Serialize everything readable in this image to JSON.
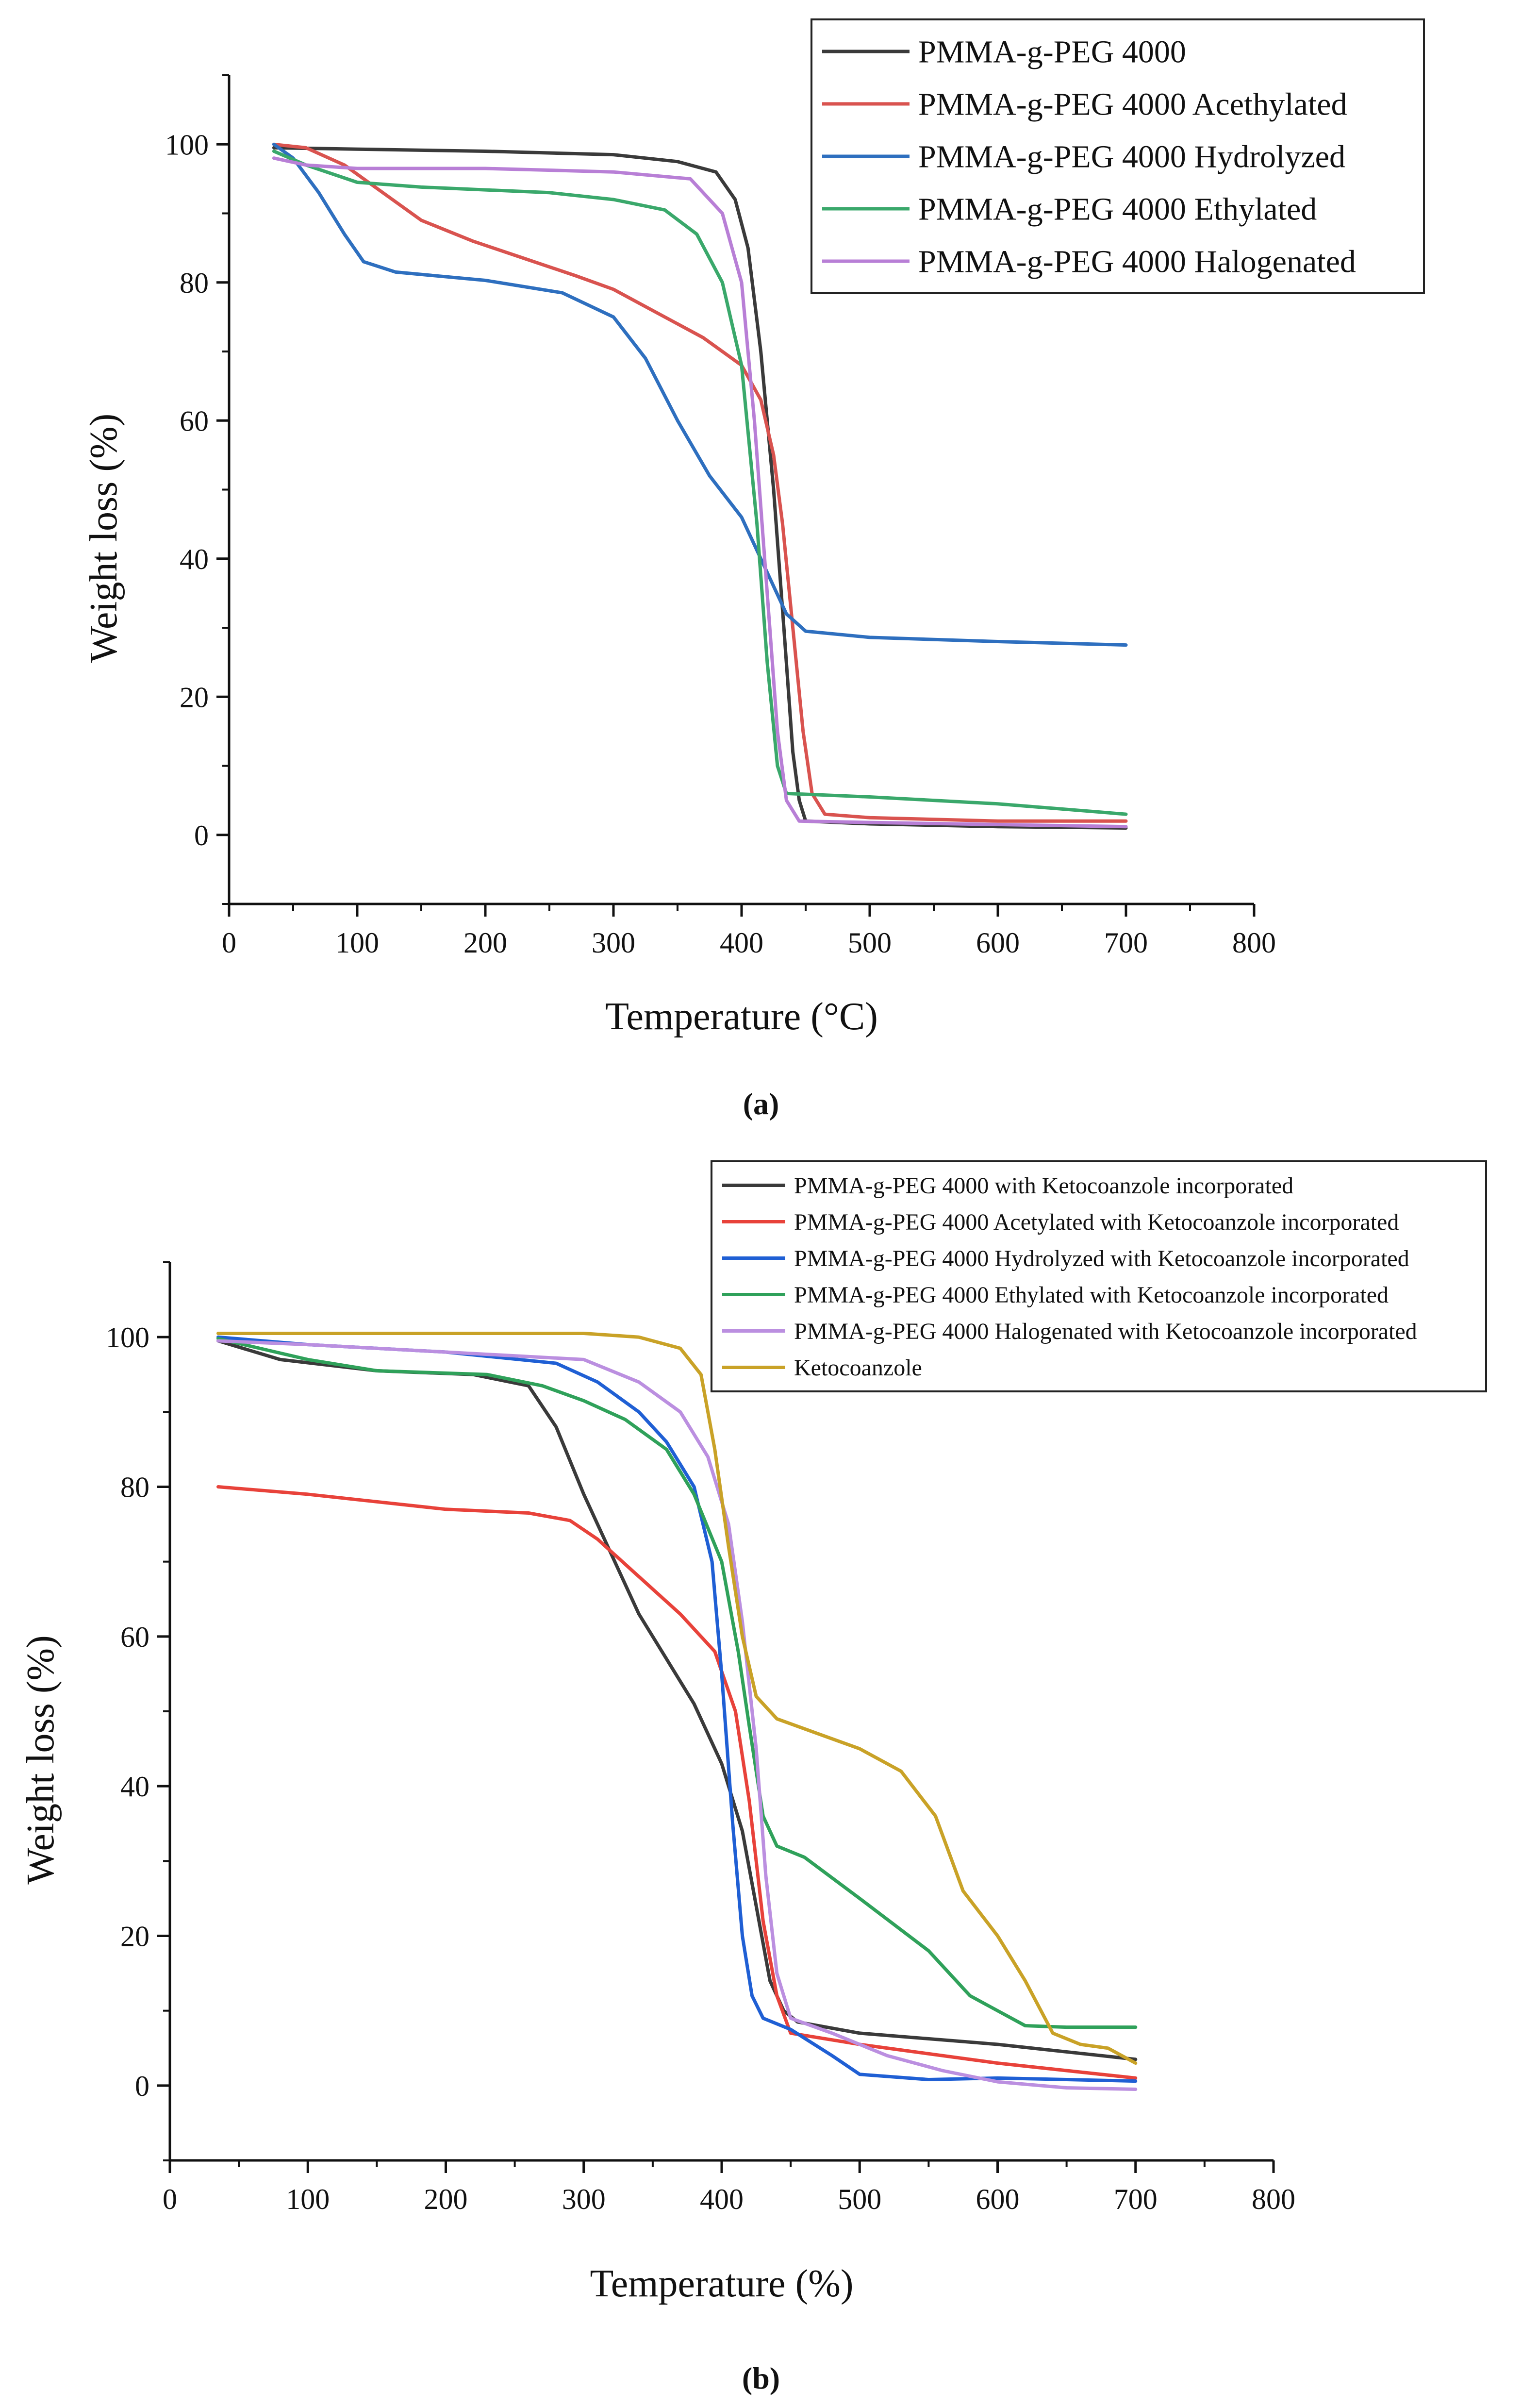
{
  "figure": {
    "caption_a": "(a)",
    "caption_b": "(b)"
  },
  "chart_data": [
    {
      "type": "line",
      "panel": "a",
      "title": "",
      "xlabel": "Temperature (°C)",
      "ylabel": "Weight loss (%)",
      "xlim": [
        0,
        800
      ],
      "ylim": [
        -10,
        110
      ],
      "xticks": [
        0,
        100,
        200,
        300,
        400,
        500,
        600,
        700,
        800
      ],
      "yticks": [
        0,
        20,
        40,
        60,
        80,
        100
      ],
      "legend_position": "top-right",
      "series": [
        {
          "name": "PMMA-g-PEG 4000",
          "color": "#3a3a3a",
          "points": [
            [
              35,
              99.5
            ],
            [
              100,
              99.3
            ],
            [
              200,
              99
            ],
            [
              300,
              98.5
            ],
            [
              350,
              97.5
            ],
            [
              380,
              96
            ],
            [
              395,
              92
            ],
            [
              405,
              85
            ],
            [
              415,
              70
            ],
            [
              425,
              50
            ],
            [
              433,
              30
            ],
            [
              440,
              12
            ],
            [
              445,
              5
            ],
            [
              450,
              2
            ],
            [
              500,
              1.6
            ],
            [
              600,
              1.2
            ],
            [
              700,
              1
            ]
          ]
        },
        {
          "name": "PMMA-g-PEG 4000 Acethylated",
          "color": "#d9534f",
          "points": [
            [
              35,
              100
            ],
            [
              60,
              99.5
            ],
            [
              90,
              97
            ],
            [
              120,
              93
            ],
            [
              150,
              89
            ],
            [
              190,
              86
            ],
            [
              230,
              83.5
            ],
            [
              270,
              81
            ],
            [
              300,
              79
            ],
            [
              330,
              76
            ],
            [
              370,
              72
            ],
            [
              400,
              68
            ],
            [
              415,
              63
            ],
            [
              425,
              55
            ],
            [
              432,
              45
            ],
            [
              440,
              30
            ],
            [
              448,
              15
            ],
            [
              455,
              6
            ],
            [
              465,
              3
            ],
            [
              500,
              2.5
            ],
            [
              600,
              2
            ],
            [
              700,
              2
            ]
          ]
        },
        {
          "name": "PMMA-g-PEG 4000 Hydrolyzed",
          "color": "#2e6fbf",
          "points": [
            [
              35,
              100
            ],
            [
              50,
              98
            ],
            [
              70,
              93
            ],
            [
              90,
              87
            ],
            [
              105,
              83
            ],
            [
              130,
              81.5
            ],
            [
              200,
              80.3
            ],
            [
              260,
              78.5
            ],
            [
              300,
              75
            ],
            [
              325,
              69
            ],
            [
              350,
              60
            ],
            [
              375,
              52
            ],
            [
              400,
              46
            ],
            [
              420,
              38
            ],
            [
              435,
              32
            ],
            [
              450,
              29.5
            ],
            [
              500,
              28.6
            ],
            [
              600,
              28
            ],
            [
              700,
              27.5
            ]
          ]
        },
        {
          "name": "PMMA-g-PEG 4000 Ethylated",
          "color": "#3aa86b",
          "points": [
            [
              35,
              99
            ],
            [
              60,
              97
            ],
            [
              100,
              94.5
            ],
            [
              150,
              93.8
            ],
            [
              250,
              93
            ],
            [
              300,
              92
            ],
            [
              340,
              90.5
            ],
            [
              365,
              87
            ],
            [
              385,
              80
            ],
            [
              400,
              68
            ],
            [
              412,
              45
            ],
            [
              420,
              25
            ],
            [
              428,
              10
            ],
            [
              435,
              6
            ],
            [
              500,
              5.5
            ],
            [
              600,
              4.5
            ],
            [
              700,
              3
            ]
          ]
        },
        {
          "name": "PMMA-g-PEG 4000 Halogenated",
          "color": "#b87fd6",
          "points": [
            [
              35,
              98
            ],
            [
              60,
              97
            ],
            [
              100,
              96.5
            ],
            [
              200,
              96.5
            ],
            [
              300,
              96
            ],
            [
              360,
              95
            ],
            [
              385,
              90
            ],
            [
              400,
              80
            ],
            [
              410,
              60
            ],
            [
              420,
              35
            ],
            [
              428,
              15
            ],
            [
              435,
              5
            ],
            [
              445,
              2
            ],
            [
              500,
              1.8
            ],
            [
              600,
              1.5
            ],
            [
              700,
              1.2
            ]
          ]
        }
      ]
    },
    {
      "type": "line",
      "panel": "b",
      "title": "",
      "xlabel": "Temperature (%)",
      "ylabel": "Weight loss (%)",
      "xlim": [
        0,
        800
      ],
      "ylim": [
        -10,
        110
      ],
      "xticks": [
        0,
        100,
        200,
        300,
        400,
        500,
        600,
        700,
        800
      ],
      "yticks": [
        0,
        20,
        40,
        60,
        80,
        100
      ],
      "legend_position": "top-right",
      "series": [
        {
          "name": "PMMA-g-PEG 4000 with Ketocoanzole incorporated",
          "color": "#3a3a3a",
          "points": [
            [
              35,
              99.5
            ],
            [
              80,
              97
            ],
            [
              150,
              95.5
            ],
            [
              220,
              95
            ],
            [
              260,
              93.5
            ],
            [
              280,
              88
            ],
            [
              300,
              79
            ],
            [
              320,
              71
            ],
            [
              340,
              63
            ],
            [
              360,
              57
            ],
            [
              380,
              51
            ],
            [
              400,
              43
            ],
            [
              415,
              34
            ],
            [
              425,
              24
            ],
            [
              435,
              14
            ],
            [
              445,
              10
            ],
            [
              455,
              8.5
            ],
            [
              500,
              7
            ],
            [
              600,
              5.5
            ],
            [
              700,
              3.5
            ]
          ]
        },
        {
          "name": "PMMA-g-PEG 4000 Acetylated with Ketocoanzole incorporated",
          "color": "#e8423a",
          "points": [
            [
              35,
              80
            ],
            [
              100,
              79
            ],
            [
              200,
              77
            ],
            [
              260,
              76.5
            ],
            [
              290,
              75.5
            ],
            [
              310,
              73
            ],
            [
              340,
              68
            ],
            [
              370,
              63
            ],
            [
              395,
              58
            ],
            [
              410,
              50
            ],
            [
              420,
              38
            ],
            [
              430,
              22
            ],
            [
              440,
              12
            ],
            [
              450,
              7
            ],
            [
              500,
              5.5
            ],
            [
              600,
              3
            ],
            [
              700,
              1
            ]
          ]
        },
        {
          "name": "PMMA-g-PEG 4000 Hydrolyzed with Ketocoanzole incorporated",
          "color": "#1f5fd4",
          "points": [
            [
              35,
              100
            ],
            [
              100,
              99
            ],
            [
              200,
              98
            ],
            [
              280,
              96.5
            ],
            [
              310,
              94
            ],
            [
              340,
              90
            ],
            [
              360,
              86
            ],
            [
              380,
              80
            ],
            [
              393,
              70
            ],
            [
              400,
              55
            ],
            [
              408,
              35
            ],
            [
              415,
              20
            ],
            [
              422,
              12
            ],
            [
              430,
              9
            ],
            [
              450,
              7.5
            ],
            [
              480,
              4
            ],
            [
              500,
              1.5
            ],
            [
              550,
              0.8
            ],
            [
              600,
              1
            ],
            [
              700,
              0.6
            ]
          ]
        },
        {
          "name": "PMMA-g-PEG 4000 Ethylated with Ketocoanzole incorporated",
          "color": "#2fa15a",
          "points": [
            [
              35,
              99.8
            ],
            [
              100,
              97
            ],
            [
              150,
              95.5
            ],
            [
              230,
              95
            ],
            [
              270,
              93.5
            ],
            [
              300,
              91.5
            ],
            [
              330,
              89
            ],
            [
              360,
              85
            ],
            [
              380,
              79
            ],
            [
              400,
              70
            ],
            [
              412,
              58
            ],
            [
              420,
              48
            ],
            [
              430,
              36
            ],
            [
              440,
              32
            ],
            [
              460,
              30.5
            ],
            [
              500,
              25
            ],
            [
              550,
              18
            ],
            [
              580,
              12
            ],
            [
              600,
              10
            ],
            [
              620,
              8
            ],
            [
              650,
              7.8
            ],
            [
              700,
              7.8
            ]
          ]
        },
        {
          "name": "PMMA-g-PEG 4000 Halogenated with Ketocoanzole incorporated",
          "color": "#bb8fe0",
          "points": [
            [
              35,
              99.5
            ],
            [
              100,
              99
            ],
            [
              200,
              98
            ],
            [
              300,
              97
            ],
            [
              340,
              94
            ],
            [
              370,
              90
            ],
            [
              390,
              84
            ],
            [
              405,
              75
            ],
            [
              415,
              62
            ],
            [
              425,
              45
            ],
            [
              432,
              28
            ],
            [
              440,
              15
            ],
            [
              450,
              9
            ],
            [
              480,
              7
            ],
            [
              520,
              4
            ],
            [
              560,
              2
            ],
            [
              600,
              0.5
            ],
            [
              650,
              -0.3
            ],
            [
              700,
              -0.5
            ]
          ]
        },
        {
          "name": "Ketocoanzole",
          "color": "#c9a227",
          "points": [
            [
              35,
              100.5
            ],
            [
              100,
              100.5
            ],
            [
              200,
              100.5
            ],
            [
              300,
              100.5
            ],
            [
              340,
              100
            ],
            [
              370,
              98.5
            ],
            [
              385,
              95
            ],
            [
              395,
              85
            ],
            [
              405,
              72
            ],
            [
              415,
              60
            ],
            [
              425,
              52
            ],
            [
              440,
              49
            ],
            [
              470,
              47
            ],
            [
              500,
              45
            ],
            [
              530,
              42
            ],
            [
              555,
              36
            ],
            [
              575,
              26
            ],
            [
              600,
              20
            ],
            [
              620,
              14
            ],
            [
              640,
              7
            ],
            [
              660,
              5.5
            ],
            [
              680,
              5
            ],
            [
              700,
              3
            ]
          ]
        }
      ]
    }
  ]
}
